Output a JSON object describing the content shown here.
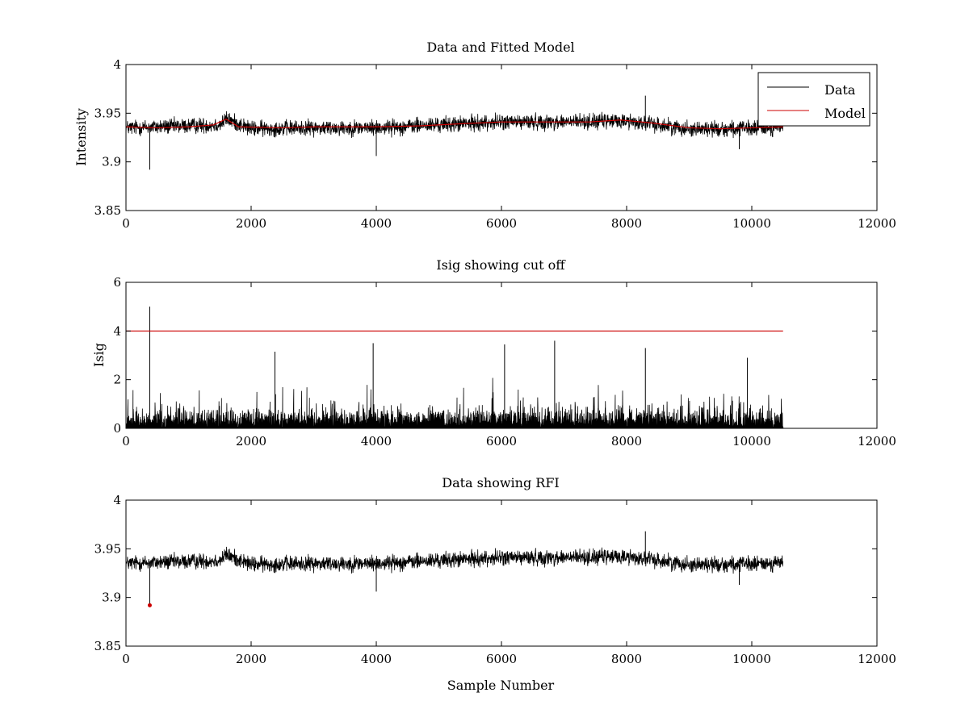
{
  "chart_data": [
    {
      "type": "line",
      "title": "Data and Fitted Model",
      "xlabel": "",
      "ylabel": "Intensity",
      "xlim": [
        0,
        12000
      ],
      "ylim": [
        3.85,
        4
      ],
      "xticks": [
        "0",
        "2000",
        "4000",
        "6000",
        "8000",
        "10000",
        "12000"
      ],
      "yticks": [
        "3.85",
        "3.9",
        "3.95",
        "4"
      ],
      "legend": {
        "placement": "top-right",
        "entries": [
          "Data",
          "Model"
        ]
      },
      "series": [
        {
          "name": "Data",
          "color": "#000000",
          "kind": "noisy",
          "x_range": [
            0,
            10500
          ],
          "noise_amplitude": 0.012,
          "baseline": [
            [
              0,
              3.935
            ],
            [
              1500,
              3.938
            ],
            [
              1600,
              3.944
            ],
            [
              2000,
              3.934
            ],
            [
              3000,
              3.935
            ],
            [
              4000,
              3.935
            ],
            [
              5000,
              3.938
            ],
            [
              6000,
              3.941
            ],
            [
              7000,
              3.941
            ],
            [
              8000,
              3.942
            ],
            [
              9000,
              3.934
            ],
            [
              10000,
              3.934
            ],
            [
              10500,
              3.936
            ]
          ],
          "spikes": [
            [
              380,
              3.892
            ],
            [
              8300,
              3.968
            ],
            [
              9800,
              3.913
            ],
            [
              4000,
              3.906
            ]
          ]
        },
        {
          "name": "Model",
          "color": "#cc0000",
          "kind": "line",
          "points": [
            [
              0,
              3.936
            ],
            [
              500,
              3.935
            ],
            [
              1000,
              3.936
            ],
            [
              1400,
              3.938
            ],
            [
              1600,
              3.944
            ],
            [
              1800,
              3.936
            ],
            [
              2500,
              3.935
            ],
            [
              3000,
              3.936
            ],
            [
              4000,
              3.936
            ],
            [
              4700,
              3.937
            ],
            [
              5300,
              3.939
            ],
            [
              6000,
              3.941
            ],
            [
              6800,
              3.941
            ],
            [
              7400,
              3.941
            ],
            [
              7900,
              3.943
            ],
            [
              8400,
              3.94
            ],
            [
              9000,
              3.935
            ],
            [
              9500,
              3.934
            ],
            [
              10000,
              3.935
            ],
            [
              10500,
              3.936
            ]
          ]
        }
      ]
    },
    {
      "type": "line",
      "title": "Isig showing cut off",
      "xlabel": "",
      "ylabel": "Isig",
      "xlim": [
        0,
        12000
      ],
      "ylim": [
        0,
        6
      ],
      "xticks": [
        "0",
        "2000",
        "4000",
        "6000",
        "8000",
        "10000",
        "12000"
      ],
      "yticks": [
        "0",
        "2",
        "4",
        "6"
      ],
      "series": [
        {
          "color": "#000000",
          "kind": "abs-noise",
          "x_range": [
            0,
            10500
          ],
          "noise_amplitude": 0.9,
          "spikes": [
            [
              380,
              5.0
            ],
            [
              2380,
              3.15
            ],
            [
              3950,
              3.5
            ],
            [
              6050,
              3.45
            ],
            [
              6850,
              3.6
            ],
            [
              8300,
              3.3
            ],
            [
              9930,
              2.9
            ]
          ]
        },
        {
          "color": "#cc0000",
          "kind": "line",
          "points": [
            [
              0,
              4
            ],
            [
              10500,
              4
            ]
          ]
        }
      ]
    },
    {
      "type": "line",
      "title": "Data showing RFI",
      "xlabel": "Sample Number",
      "ylabel": "",
      "xlim": [
        0,
        12000
      ],
      "ylim": [
        3.85,
        4
      ],
      "xticks": [
        "0",
        "2000",
        "4000",
        "6000",
        "8000",
        "10000",
        "12000"
      ],
      "yticks": [
        "3.85",
        "3.9",
        "3.95",
        "4"
      ],
      "series": [
        {
          "color": "#000000",
          "kind": "noisy",
          "x_range": [
            0,
            10500
          ],
          "noise_amplitude": 0.012,
          "baseline": [
            [
              0,
              3.935
            ],
            [
              1500,
              3.938
            ],
            [
              1600,
              3.944
            ],
            [
              2000,
              3.934
            ],
            [
              3000,
              3.935
            ],
            [
              4000,
              3.935
            ],
            [
              5000,
              3.938
            ],
            [
              6000,
              3.941
            ],
            [
              7000,
              3.941
            ],
            [
              8000,
              3.942
            ],
            [
              9000,
              3.934
            ],
            [
              10000,
              3.934
            ],
            [
              10500,
              3.936
            ]
          ],
          "spikes": [
            [
              380,
              3.892
            ],
            [
              8300,
              3.968
            ],
            [
              9800,
              3.913
            ],
            [
              4000,
              3.906
            ]
          ]
        },
        {
          "color": "#cc0000",
          "kind": "markers",
          "points": [
            [
              380,
              3.892
            ]
          ]
        }
      ]
    }
  ]
}
